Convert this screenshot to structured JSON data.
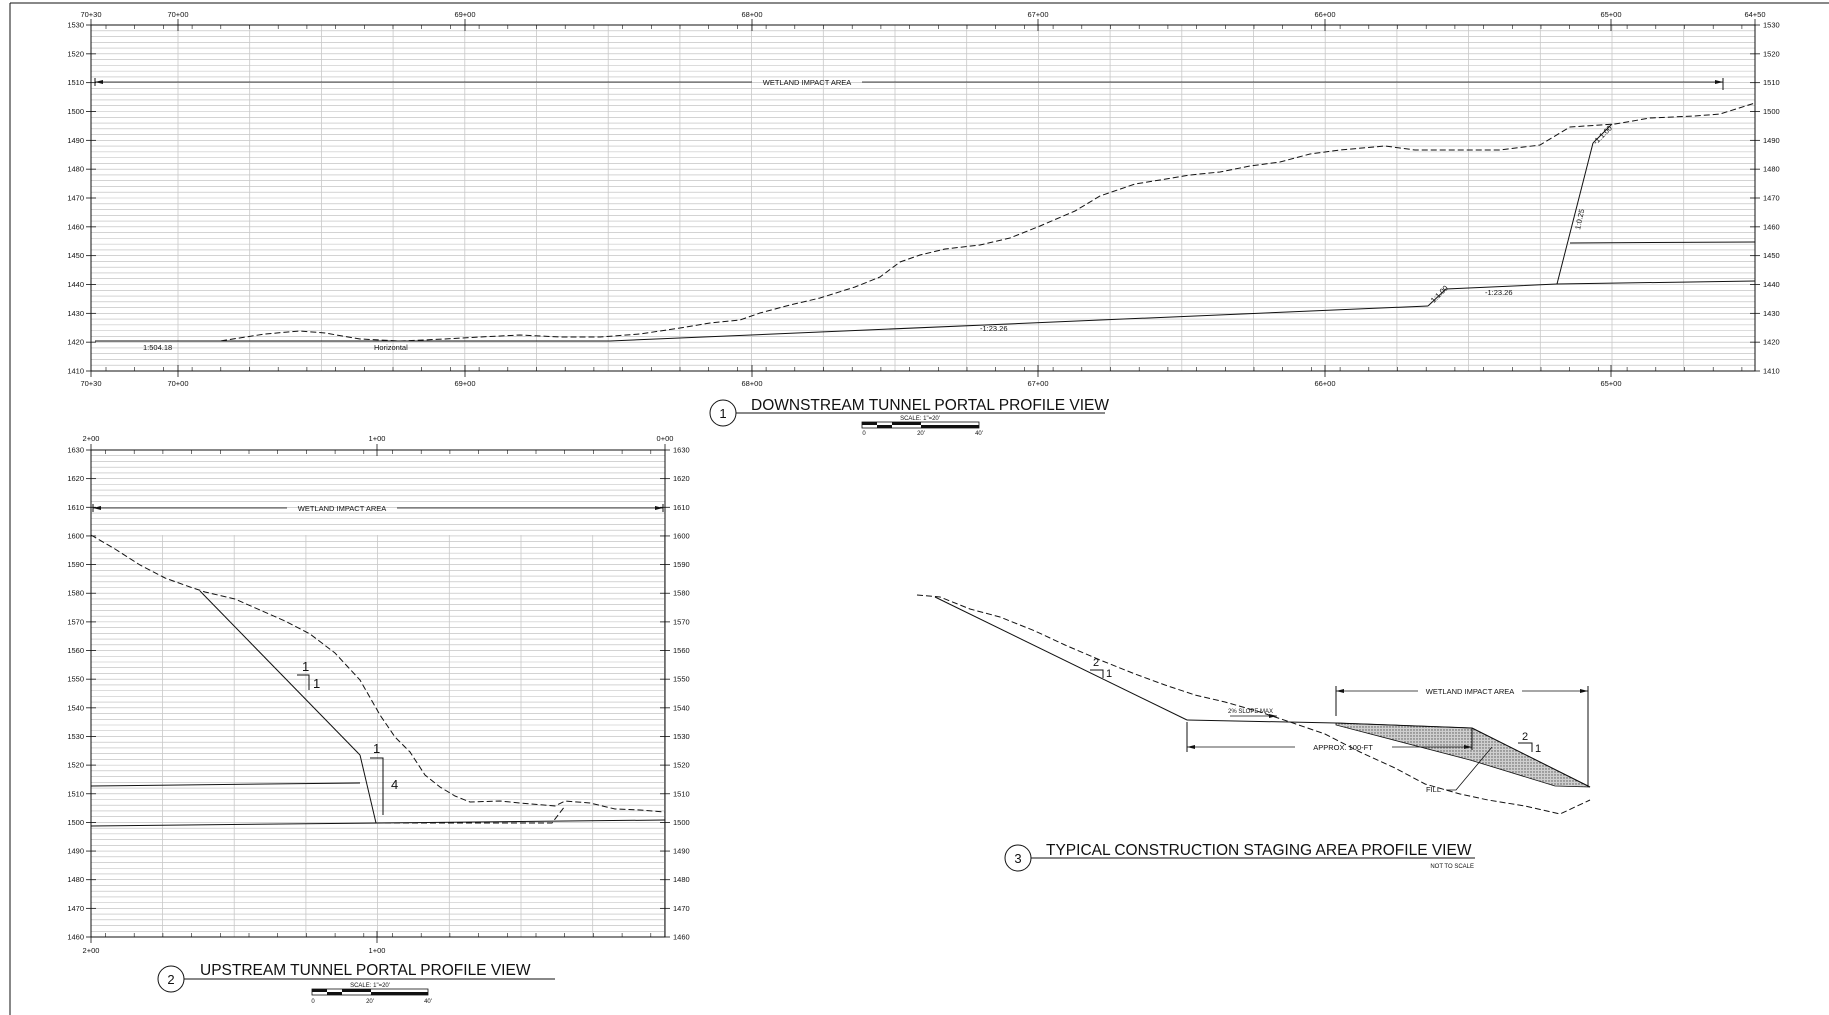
{
  "views": {
    "downstream": {
      "number": "1",
      "title": "DOWNSTREAM TUNNEL PORTAL PROFILE VIEW",
      "scale_label": "SCALE: 1\"=20'",
      "scale_ticks": [
        "0",
        "20'",
        "40'"
      ],
      "stations_top": [
        "70+30",
        "70+00",
        "69+00",
        "68+00",
        "67+00",
        "66+00",
        "65+00",
        "64+50"
      ],
      "stations_bottom": [
        "70+30",
        "70+00",
        "69+00",
        "68+00",
        "67+00",
        "66+00",
        "65+00"
      ],
      "elevations": [
        "1530",
        "1520",
        "1510",
        "1500",
        "1490",
        "1480",
        "1470",
        "1460",
        "1450",
        "1440",
        "1430",
        "1420",
        "1410"
      ],
      "wetland_label": "WETLAND IMPACT AREA",
      "annotations": {
        "left_slope": "1:504.18",
        "horizontal": "Horizontal",
        "main_slope": "-1:23.26",
        "small_slope": "-1:23.26",
        "steep_a": "-1:1.00",
        "steep_b": "1:0.25",
        "steep_c": "-1:1.00"
      }
    },
    "upstream": {
      "number": "2",
      "title": "UPSTREAM TUNNEL PORTAL PROFILE VIEW",
      "scale_label": "SCALE: 1\"=20'",
      "scale_ticks": [
        "0",
        "20'",
        "40'"
      ],
      "stations_top": [
        "2+00",
        "1+00",
        "0+00"
      ],
      "stations_bottom": [
        "2+00",
        "1+00"
      ],
      "elevations": [
        "1630",
        "1620",
        "1610",
        "1600",
        "1590",
        "1580",
        "1570",
        "1560",
        "1550",
        "1540",
        "1530",
        "1520",
        "1510",
        "1500",
        "1490",
        "1480",
        "1470",
        "1460"
      ],
      "wetland_label": "WETLAND IMPACT AREA",
      "slope_marks": [
        {
          "rise": "1",
          "run": "1"
        },
        {
          "rise": "1",
          "run": "4"
        }
      ]
    },
    "staging": {
      "number": "3",
      "title": "TYPICAL CONSTRUCTION STAGING AREA PROFILE VIEW",
      "subtitle": "NOT TO SCALE",
      "wetland_label": "WETLAND IMPACT AREA",
      "slope_max": "2% SLOPE MAX",
      "approx": "APPROX. 100-FT",
      "fill": "FILL",
      "slope_marks": [
        {
          "rise": "2",
          "run": "1"
        },
        {
          "rise": "2",
          "run": "1"
        }
      ]
    }
  },
  "colors": {
    "line": "#111111",
    "hatch": "#b9b9b9",
    "fill_pattern": "#8a8a8a"
  }
}
